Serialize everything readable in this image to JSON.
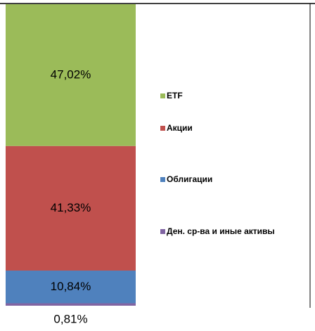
{
  "chart_data": {
    "type": "bar",
    "stacked": true,
    "categories": [
      null
    ],
    "ylim": [
      0,
      100
    ],
    "series": [
      {
        "name": "Ден. ср-ва и иные активы",
        "color": "#8064a2",
        "values": [
          0.81
        ],
        "value_labels": [
          "0,81%"
        ]
      },
      {
        "name": "Облигации",
        "color": "#4f81bd",
        "values": [
          10.84
        ],
        "value_labels": [
          "10,84%"
        ]
      },
      {
        "name": "Акции",
        "color": "#c0504d",
        "values": [
          41.33
        ],
        "value_labels": [
          "41,33%"
        ]
      },
      {
        "name": "ETF",
        "color": "#9bbb59",
        "values": [
          47.02
        ],
        "value_labels": [
          "47,02%"
        ]
      }
    ],
    "legend": "right"
  }
}
